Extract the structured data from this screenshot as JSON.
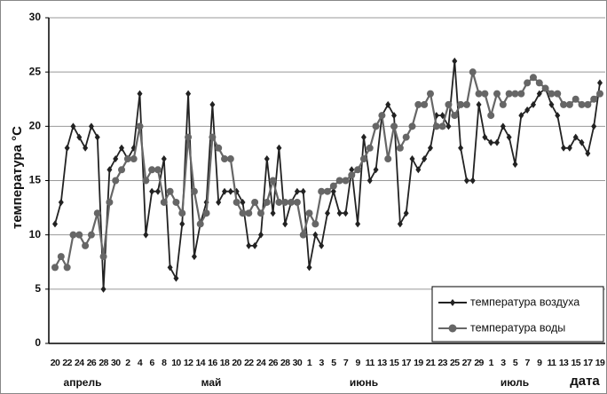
{
  "chart_data": {
    "type": "line",
    "y_label": "температура °С",
    "x_label": "дата",
    "months": [
      "апрель",
      "май",
      "июнь",
      "июль"
    ],
    "categories": [
      "20",
      null,
      "22",
      null,
      "24",
      null,
      "26",
      null,
      "28",
      null,
      "30",
      null,
      "2",
      null,
      "4",
      null,
      "6",
      null,
      "8",
      null,
      "10",
      null,
      "12",
      null,
      "14",
      null,
      "16",
      null,
      "18",
      null,
      "20",
      null,
      "22",
      null,
      "24",
      null,
      "26",
      null,
      "28",
      null,
      "30",
      null,
      "1",
      null,
      "3",
      null,
      "5",
      null,
      "7",
      null,
      "9",
      null,
      "11",
      null,
      "13",
      null,
      "15",
      null,
      "17",
      null,
      "19",
      null,
      "21",
      null,
      "23",
      null,
      "25",
      null,
      "27",
      null,
      "29",
      null,
      "1",
      null,
      "3",
      null,
      "5",
      null,
      "7",
      null,
      "9",
      null,
      "11",
      null,
      "13",
      null,
      "15",
      null,
      "17",
      null,
      "19"
    ],
    "series": [
      {
        "name": "температура воздуха",
        "color": "#222222",
        "marker": "diamond",
        "values": [
          11,
          13,
          18,
          20,
          19,
          18,
          20,
          19,
          5,
          16,
          17,
          18,
          17,
          18,
          23,
          10,
          14,
          14,
          17,
          7,
          6,
          11,
          23,
          8,
          11,
          13,
          22,
          13,
          14,
          14,
          14,
          13,
          9,
          9,
          10,
          17,
          12,
          18,
          11,
          13,
          14,
          14,
          7,
          10,
          9,
          12,
          14,
          12,
          12,
          16,
          11,
          19,
          15,
          16,
          21,
          22,
          21,
          11,
          12,
          17,
          16,
          17,
          18,
          21,
          21,
          20,
          26,
          18,
          15,
          15,
          22,
          19,
          18.5,
          18.5,
          20,
          19,
          16.5,
          21,
          21.5,
          22,
          23,
          23.5,
          22,
          21,
          18,
          18,
          19,
          18.5,
          17.5,
          20,
          24
        ]
      },
      {
        "name": "температура воды",
        "color": "#666666",
        "marker": "circle",
        "values": [
          7,
          8,
          7,
          10,
          10,
          9,
          10,
          12,
          8,
          13,
          15,
          16,
          17,
          17,
          20,
          15,
          16,
          16,
          13,
          14,
          13,
          12,
          19,
          14,
          11,
          12,
          19,
          18,
          17,
          17,
          13,
          12,
          12,
          13,
          12,
          13,
          15,
          13,
          13,
          13,
          13,
          10,
          12,
          11,
          14,
          14,
          14.5,
          15,
          15,
          15.5,
          16,
          17,
          18,
          20,
          21,
          17,
          20,
          18,
          19,
          20,
          22,
          22,
          23,
          20,
          20,
          22,
          21,
          22,
          22,
          25,
          23,
          23,
          21,
          23,
          22,
          23,
          23,
          23,
          24,
          24.5,
          24,
          23.5,
          23,
          23,
          22,
          22,
          22.5,
          22,
          22,
          22.5,
          23
        ]
      }
    ],
    "ylim": [
      0,
      30
    ],
    "yticks": [
      0,
      5,
      10,
      15,
      20,
      25,
      30
    ],
    "grid": true
  }
}
